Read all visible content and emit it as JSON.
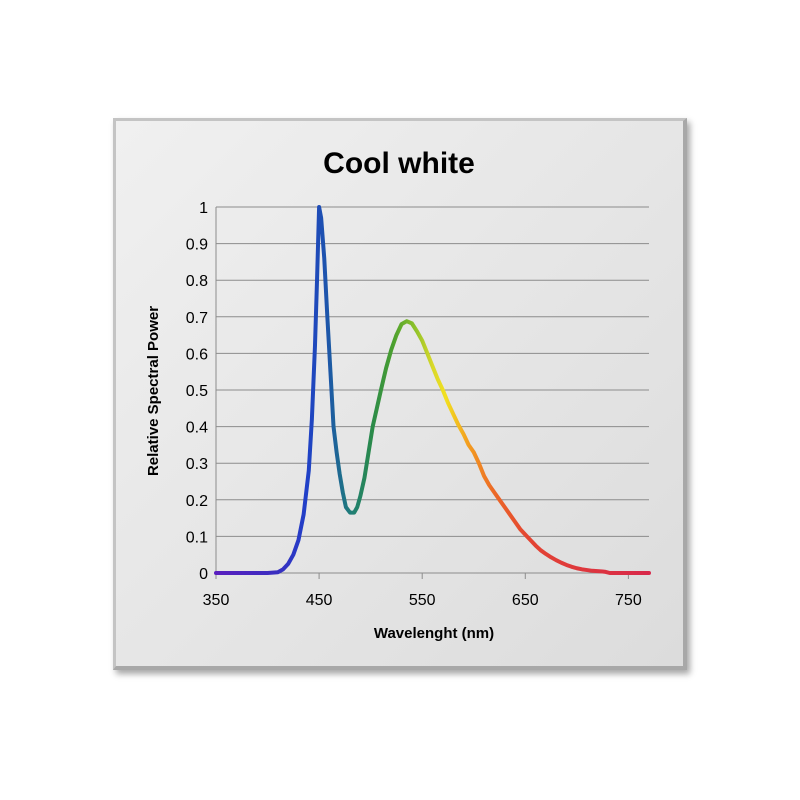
{
  "chart_data": {
    "type": "line",
    "title": "Cool white",
    "xlabel": "Wavelenght (nm)",
    "ylabel": "Relative Spectral Power",
    "xlim": [
      350,
      770
    ],
    "ylim": [
      0,
      1
    ],
    "x_ticks": [
      350,
      450,
      550,
      650,
      750
    ],
    "y_ticks": [
      0,
      0.1,
      0.2,
      0.3,
      0.4,
      0.5,
      0.6,
      0.7,
      0.8,
      0.9,
      1
    ],
    "grid": "horizontal",
    "legend": "none",
    "line_color": "spectral gradient (violet to red)",
    "series": [
      {
        "x": [
          350,
          400,
          410,
          415,
          420,
          425,
          430,
          435,
          440,
          443,
          446,
          448,
          450,
          452,
          455,
          458,
          461,
          464,
          467,
          470,
          473,
          476,
          480,
          484,
          487,
          490,
          494,
          498,
          502,
          506,
          510,
          515,
          520,
          525,
          530,
          535,
          540,
          545,
          550,
          555,
          560,
          565,
          570,
          575,
          580,
          585,
          590,
          595,
          600,
          605,
          610,
          615,
          620,
          625,
          630,
          635,
          640,
          645,
          650,
          655,
          660,
          665,
          670,
          675,
          680,
          685,
          690,
          695,
          700,
          705,
          710,
          715,
          720,
          725,
          728,
          732,
          740,
          770
        ],
        "y": [
          0,
          0,
          0.002,
          0.01,
          0.025,
          0.05,
          0.09,
          0.16,
          0.28,
          0.42,
          0.62,
          0.8,
          1.0,
          0.97,
          0.86,
          0.7,
          0.55,
          0.4,
          0.33,
          0.27,
          0.22,
          0.18,
          0.165,
          0.165,
          0.18,
          0.21,
          0.26,
          0.33,
          0.4,
          0.45,
          0.5,
          0.56,
          0.61,
          0.65,
          0.68,
          0.688,
          0.682,
          0.66,
          0.635,
          0.6,
          0.565,
          0.53,
          0.5,
          0.465,
          0.435,
          0.405,
          0.38,
          0.35,
          0.33,
          0.3,
          0.265,
          0.24,
          0.22,
          0.2,
          0.18,
          0.16,
          0.14,
          0.12,
          0.105,
          0.09,
          0.075,
          0.062,
          0.052,
          0.043,
          0.035,
          0.028,
          0.022,
          0.017,
          0.013,
          0.01,
          0.008,
          0.006,
          0.005,
          0.004,
          0.003,
          0,
          0,
          0
        ]
      }
    ]
  }
}
